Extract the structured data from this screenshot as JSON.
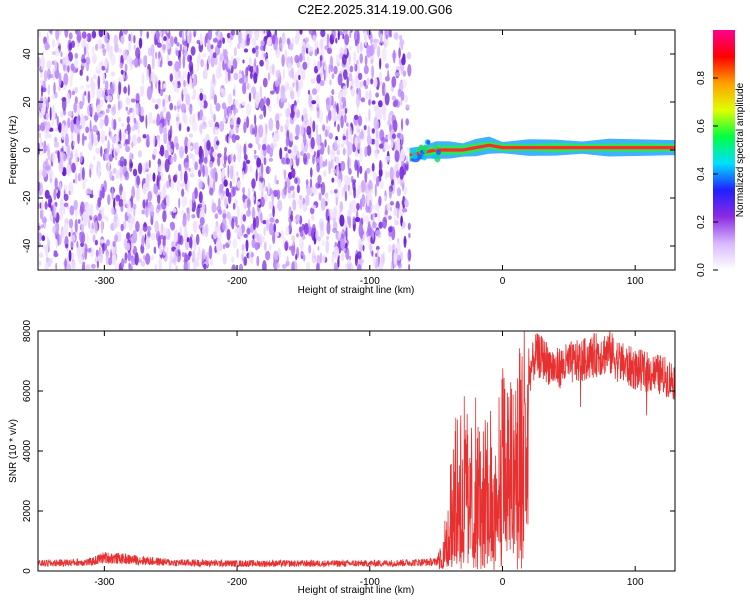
{
  "title": "C2E2.2025.314.19.00.G06",
  "chart_data": [
    {
      "type": "heatmap",
      "xlabel": "Height of straight line (km)",
      "ylabel": "Frequency (Hz)",
      "xlim": [
        -350,
        130
      ],
      "ylim": [
        -50,
        50
      ],
      "xticks": [
        "-300",
        "-200",
        "-100",
        "0",
        "100"
      ],
      "xtick_values": [
        -300,
        -200,
        -100,
        0,
        100
      ],
      "yticks": [
        "-40",
        "-20",
        "0",
        "20",
        "40"
      ],
      "ytick_values": [
        -40,
        -20,
        0,
        20,
        40
      ],
      "noise_region": {
        "x_from": -350,
        "x_to": -70,
        "freq_from": -50,
        "freq_to": 50
      },
      "signal_ridge": [
        {
          "x": -70,
          "f": -2
        },
        {
          "x": -60,
          "f": -1
        },
        {
          "x": -50,
          "f": 0
        },
        {
          "x": -40,
          "f": 0
        },
        {
          "x": -30,
          "f": 0
        },
        {
          "x": -20,
          "f": 1
        },
        {
          "x": -10,
          "f": 2
        },
        {
          "x": 0,
          "f": 1
        },
        {
          "x": 20,
          "f": 1
        },
        {
          "x": 40,
          "f": 1
        },
        {
          "x": 60,
          "f": 1
        },
        {
          "x": 80,
          "f": 1
        },
        {
          "x": 100,
          "f": 1
        },
        {
          "x": 130,
          "f": 1
        }
      ],
      "colorbar": {
        "label": "Normalized spectral amplitude",
        "range": [
          0,
          1
        ],
        "ticks": [
          "0.0",
          "0.2",
          "0.4",
          "0.6",
          "0.8"
        ],
        "tick_values": [
          0.0,
          0.2,
          0.4,
          0.6,
          0.8
        ],
        "colors": [
          "#ffffff",
          "#d8b8ff",
          "#8a2be2",
          "#2020ff",
          "#00e0ff",
          "#00ff40",
          "#e0ff00",
          "#ffa000",
          "#ff0000",
          "#ff0090"
        ]
      }
    },
    {
      "type": "line",
      "xlabel": "Height of straight line (km)",
      "ylabel": "SNR (10 * v/v)",
      "xlim": [
        -350,
        130
      ],
      "ylim": [
        0,
        8000
      ],
      "xticks": [
        "-300",
        "-200",
        "-100",
        "0",
        "100"
      ],
      "xtick_values": [
        -300,
        -200,
        -100,
        0,
        100
      ],
      "yticks": [
        "0",
        "2000",
        "4000",
        "6000",
        "8000"
      ],
      "ytick_values": [
        0,
        2000,
        4000,
        6000,
        8000
      ],
      "color": "#e83030",
      "envelope": [
        {
          "x": -350,
          "y": 250
        },
        {
          "x": -310,
          "y": 300
        },
        {
          "x": -300,
          "y": 450
        },
        {
          "x": -250,
          "y": 280
        },
        {
          "x": -200,
          "y": 250
        },
        {
          "x": -100,
          "y": 250
        },
        {
          "x": -50,
          "y": 300
        },
        {
          "x": -45,
          "y": 700
        },
        {
          "x": -40,
          "y": 2500
        },
        {
          "x": -35,
          "y": 3800
        },
        {
          "x": -30,
          "y": 4500
        },
        {
          "x": -25,
          "y": 3500
        },
        {
          "x": -20,
          "y": 4200
        },
        {
          "x": -15,
          "y": 3200
        },
        {
          "x": -10,
          "y": 4400
        },
        {
          "x": -5,
          "y": 3600
        },
        {
          "x": 0,
          "y": 5000
        },
        {
          "x": 5,
          "y": 4800
        },
        {
          "x": 10,
          "y": 5600
        },
        {
          "x": 15,
          "y": 6000
        },
        {
          "x": 20,
          "y": 6800
        },
        {
          "x": 25,
          "y": 7500
        },
        {
          "x": 30,
          "y": 7400
        },
        {
          "x": 40,
          "y": 7000
        },
        {
          "x": 50,
          "y": 7200
        },
        {
          "x": 60,
          "y": 7300
        },
        {
          "x": 70,
          "y": 7500
        },
        {
          "x": 80,
          "y": 7600
        },
        {
          "x": 90,
          "y": 7200
        },
        {
          "x": 100,
          "y": 7000
        },
        {
          "x": 110,
          "y": 6900
        },
        {
          "x": 120,
          "y": 6800
        },
        {
          "x": 130,
          "y": 6600
        }
      ]
    }
  ]
}
